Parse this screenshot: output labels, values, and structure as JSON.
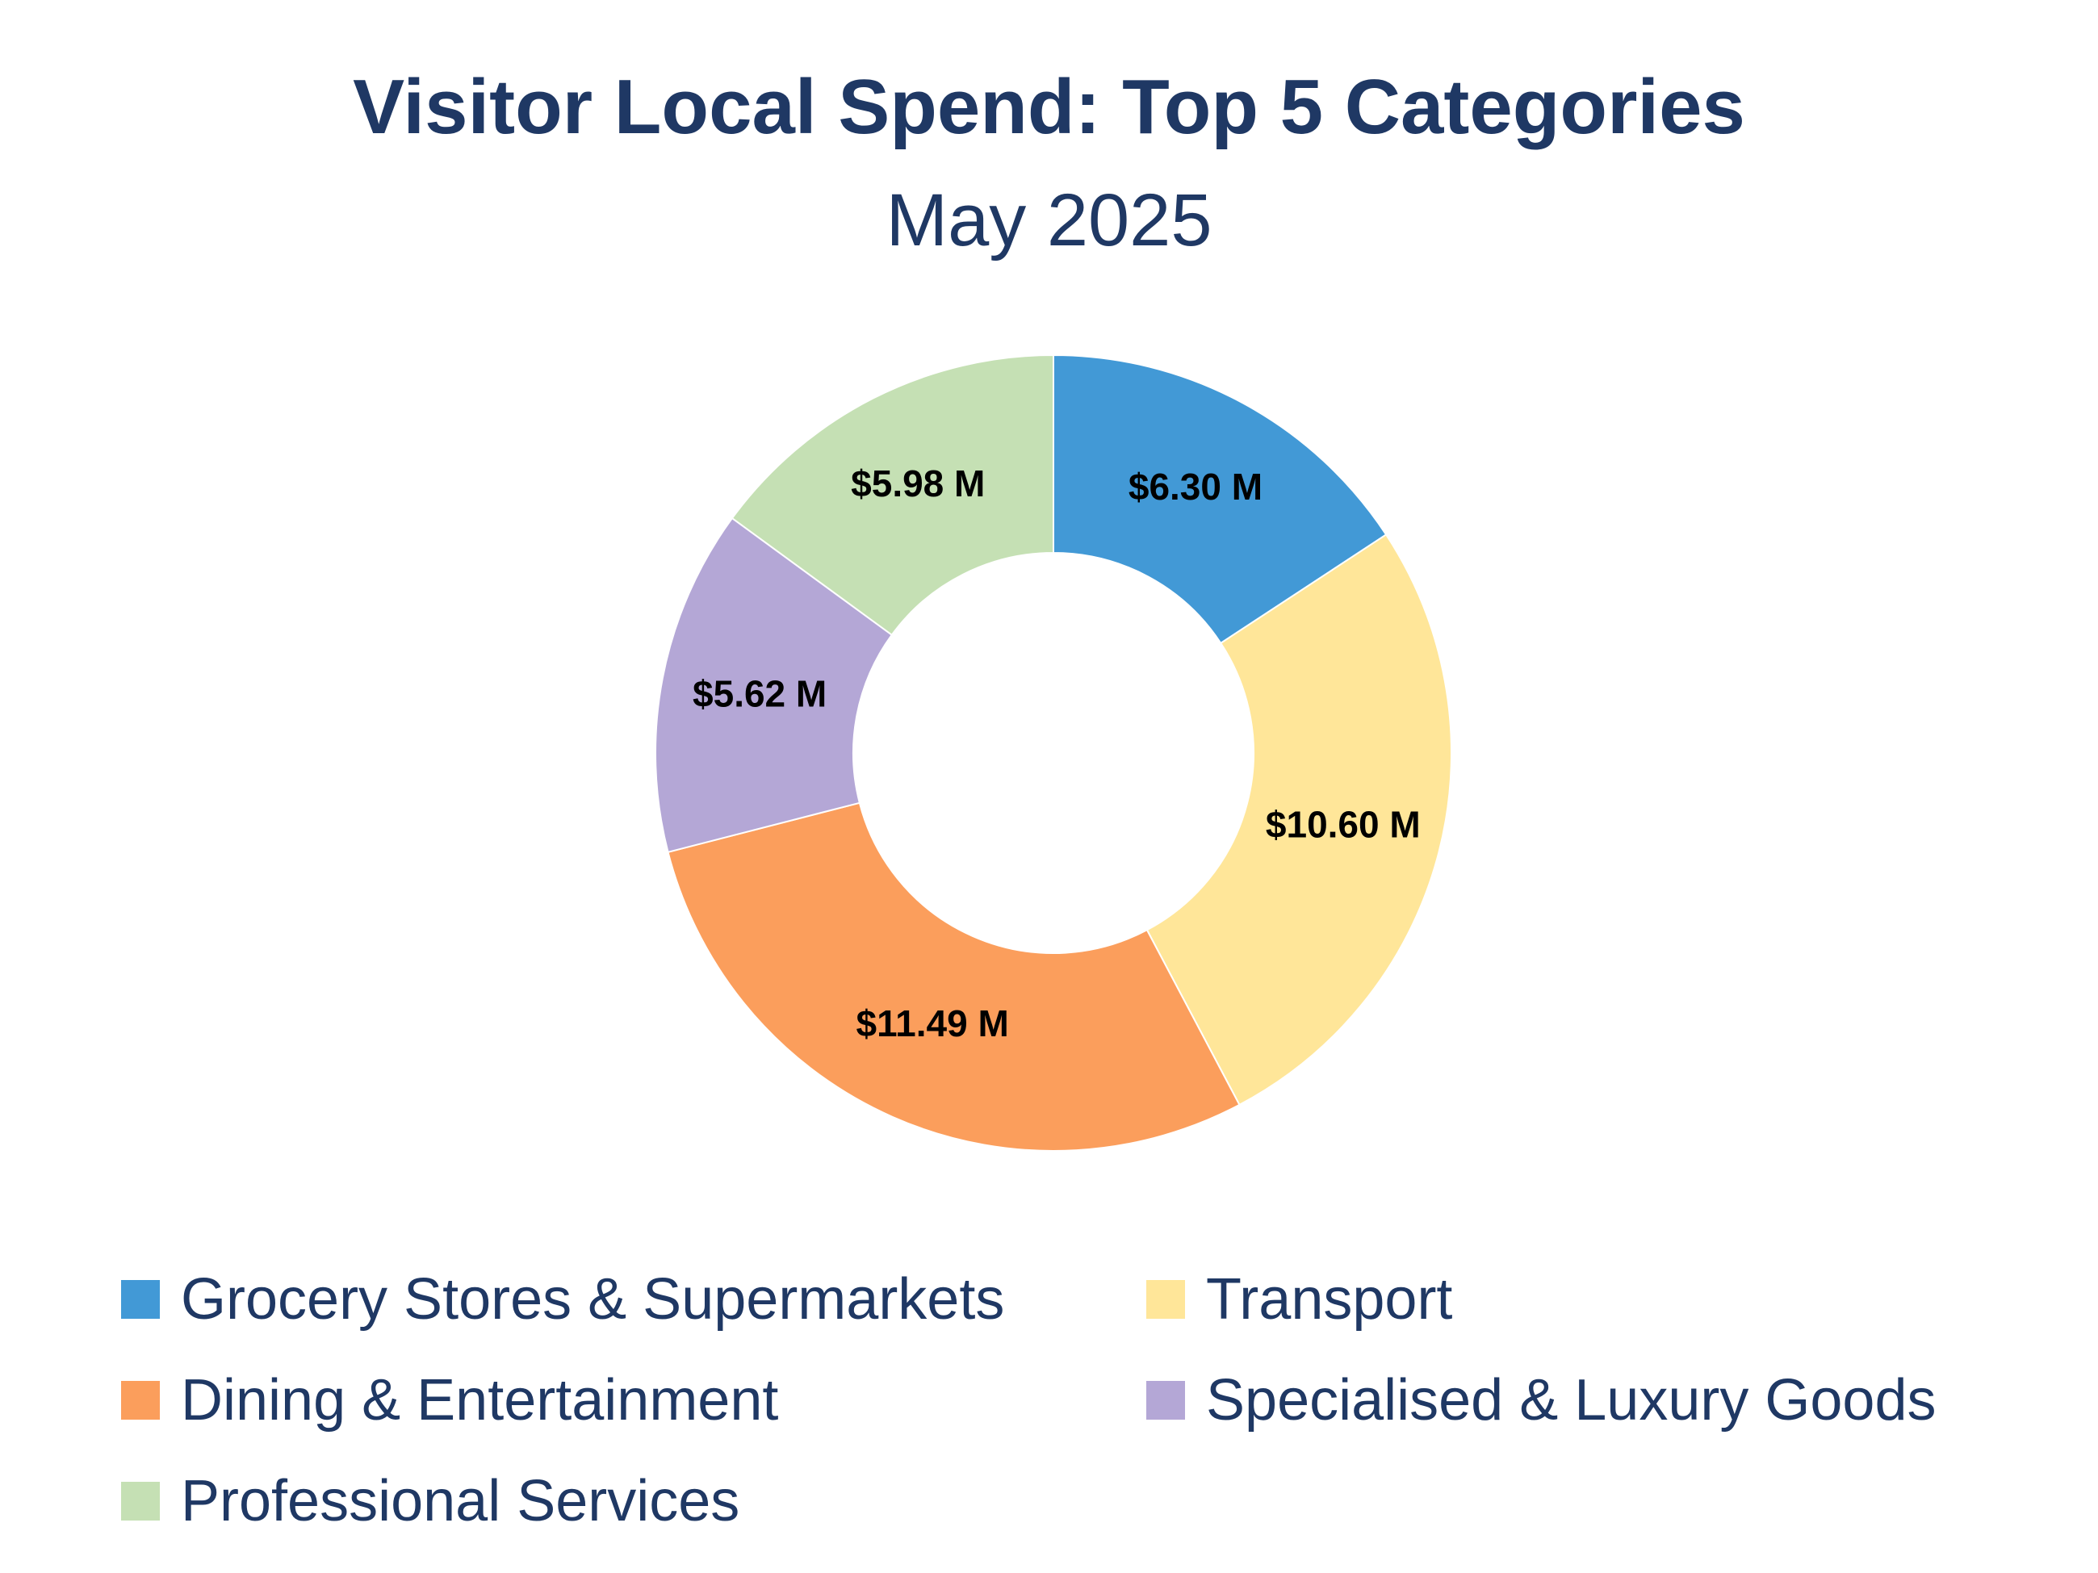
{
  "chart_data": {
    "type": "pie",
    "donut": true,
    "title": "Visitor Local Spend: Top 5 Categories",
    "subtitle": "May 2025",
    "series": [
      {
        "name": "Grocery Stores & Supermarkets",
        "value": 6.3,
        "label": "$6.30 M",
        "color": "#4299d6"
      },
      {
        "name": "Transport",
        "value": 10.6,
        "label": "$10.60 M",
        "color": "#ffe699"
      },
      {
        "name": "Dining & Entertainment",
        "value": 11.49,
        "label": "$11.49 M",
        "color": "#fb9e5c"
      },
      {
        "name": "Specialised & Luxury Goods",
        "value": 5.62,
        "label": "$5.62 M",
        "color": "#b4a7d6"
      },
      {
        "name": "Professional Services",
        "value": 5.98,
        "label": "$5.98 M",
        "color": "#c5e0b4"
      }
    ],
    "legend_position": "bottom"
  }
}
